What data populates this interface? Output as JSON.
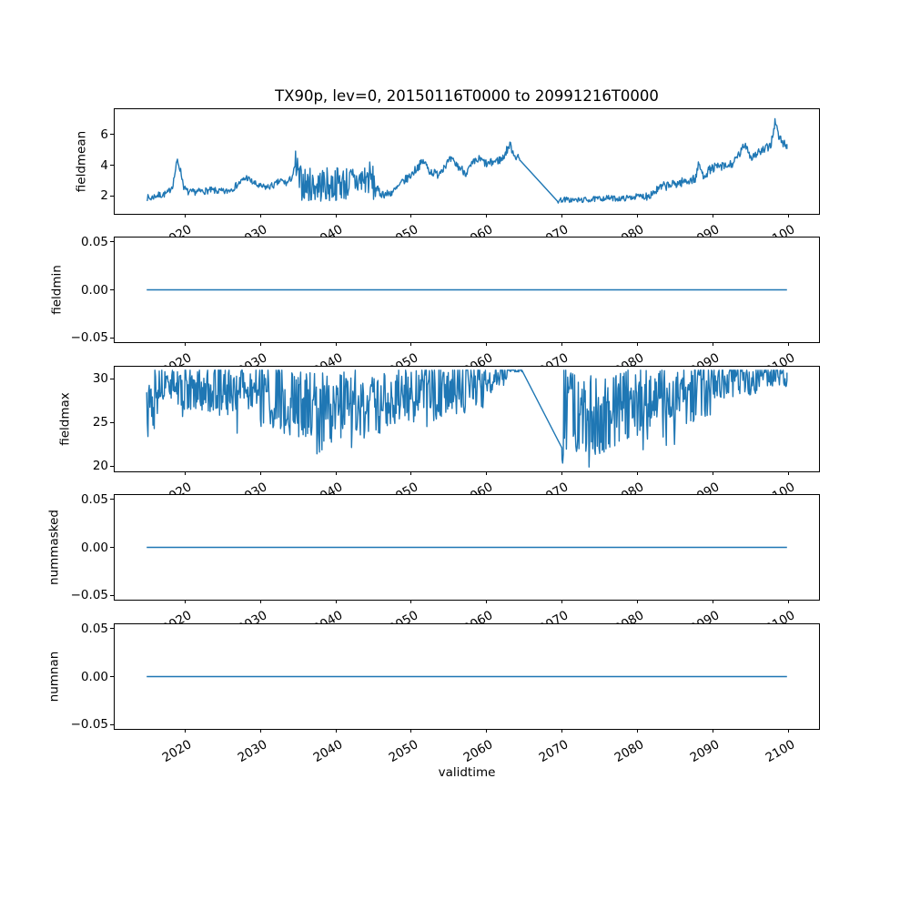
{
  "figure": {
    "title": "TX90p, lev=0, 20150116T0000 to 20991216T0000",
    "background_color": "#ffffff",
    "text_color": "#000000"
  },
  "chart_data": {
    "type": "line",
    "title": "TX90p, lev=0, 20150116T0000 to 20991216T0000",
    "xlabel": "validtime",
    "line_color": "#1f77b4",
    "grid": false,
    "legend": "none",
    "x": {
      "start": 2015.04,
      "end": 2099.96,
      "lim": [
        2010.79,
        2104.21
      ],
      "ticks": [
        2020,
        2030,
        2040,
        2050,
        2060,
        2070,
        2080,
        2090,
        2100
      ],
      "tick_labels": [
        "2020",
        "2030",
        "2040",
        "2050",
        "2060",
        "2070",
        "2080",
        "2090",
        "2100"
      ]
    },
    "subplots": [
      {
        "name": "fieldmean",
        "ylabel": "fieldmean",
        "ylim": [
          0.81,
          7.67
        ],
        "yticks": [
          {
            "v": 6,
            "label": "6"
          },
          {
            "v": 4,
            "label": "4"
          },
          {
            "v": 2,
            "label": "2"
          }
        ],
        "series": {
          "kind": "noisy",
          "seed": 7,
          "samples_per_year": 12,
          "clamp": [
            1.15,
            7.5
          ],
          "gap": {
            "from": 2064.6,
            "to": 2069.5
          },
          "trend": [
            [
              2015.04,
              1.9
            ],
            [
              2015.5,
              1.8
            ],
            [
              2016.2,
              2.0
            ],
            [
              2017,
              2.05
            ],
            [
              2017.8,
              2.15
            ],
            [
              2018.5,
              2.7
            ],
            [
              2019.1,
              4.35
            ],
            [
              2019.5,
              3.7
            ],
            [
              2020,
              2.5
            ],
            [
              2020.6,
              2.2
            ],
            [
              2021.5,
              2.25
            ],
            [
              2022.5,
              2.3
            ],
            [
              2023.5,
              2.35
            ],
            [
              2024.5,
              2.3
            ],
            [
              2025.5,
              2.25
            ],
            [
              2026.5,
              2.5
            ],
            [
              2027.5,
              2.9
            ],
            [
              2028.3,
              3.2
            ],
            [
              2029,
              2.9
            ],
            [
              2030,
              2.6
            ],
            [
              2031,
              2.55
            ],
            [
              2032,
              2.7
            ],
            [
              2032.8,
              3.0
            ],
            [
              2033.6,
              2.8
            ],
            [
              2034.3,
              3.2
            ],
            [
              2034.8,
              4.0
            ],
            [
              2035.3,
              2.9
            ],
            [
              2036.5,
              2.7
            ],
            [
              2037.5,
              2.65
            ],
            [
              2038.5,
              2.75
            ],
            [
              2039.5,
              2.65
            ],
            [
              2040.5,
              2.85
            ],
            [
              2041.5,
              2.8
            ],
            [
              2042.5,
              2.9
            ],
            [
              2043.5,
              3.0
            ],
            [
              2044.6,
              3.2
            ],
            [
              2045.2,
              2.7
            ],
            [
              2046,
              2.15
            ],
            [
              2047,
              2.1
            ],
            [
              2048,
              2.35
            ],
            [
              2049,
              2.9
            ],
            [
              2050,
              3.3
            ],
            [
              2051,
              3.9
            ],
            [
              2051.8,
              4.25
            ],
            [
              2052.6,
              3.6
            ],
            [
              2053.6,
              3.4
            ],
            [
              2054.6,
              4.0
            ],
            [
              2055.4,
              4.35
            ],
            [
              2056.4,
              3.9
            ],
            [
              2057.4,
              3.5
            ],
            [
              2058.4,
              4.15
            ],
            [
              2059.2,
              4.4
            ],
            [
              2060.2,
              4.05
            ],
            [
              2061.2,
              4.25
            ],
            [
              2062.2,
              4.4
            ],
            [
              2063.2,
              5.35
            ],
            [
              2063.8,
              4.7
            ],
            [
              2064.6,
              4.3
            ],
            [
              2069.5,
              1.65
            ],
            [
              2070.2,
              1.75
            ],
            [
              2072,
              1.7
            ],
            [
              2074,
              1.75
            ],
            [
              2076,
              1.85
            ],
            [
              2078,
              1.8
            ],
            [
              2080,
              1.95
            ],
            [
              2081.5,
              2.0
            ],
            [
              2082.5,
              2.3
            ],
            [
              2083.5,
              2.6
            ],
            [
              2085,
              2.75
            ],
            [
              2086.5,
              2.95
            ],
            [
              2087.8,
              3.1
            ],
            [
              2088.3,
              4.1
            ],
            [
              2088.8,
              3.3
            ],
            [
              2090,
              3.8
            ],
            [
              2091,
              3.9
            ],
            [
              2092,
              3.9
            ],
            [
              2093,
              4.2
            ],
            [
              2094.5,
              5.4
            ],
            [
              2095.2,
              4.5
            ],
            [
              2096,
              4.8
            ],
            [
              2097,
              5.0
            ],
            [
              2097.8,
              5.3
            ],
            [
              2098.4,
              6.9
            ],
            [
              2098.9,
              5.8
            ],
            [
              2099.4,
              5.5
            ],
            [
              2099.96,
              5.2
            ]
          ],
          "noise": [
            {
              "from": 2015.04,
              "to": 2034.7,
              "amp": 0.22,
              "spike_prob": 0,
              "spike_depth": 0
            },
            {
              "from": 2034.7,
              "to": 2045.4,
              "amp": 1.15,
              "spike_prob": 0,
              "spike_depth": 0
            },
            {
              "from": 2045.4,
              "to": 2064.6,
              "amp": 0.28,
              "spike_prob": 0,
              "spike_depth": 0
            },
            {
              "from": 2069.5,
              "to": 2081,
              "amp": 0.18,
              "spike_prob": 0,
              "spike_depth": 0
            },
            {
              "from": 2081,
              "to": 2100,
              "amp": 0.3,
              "spike_prob": 0,
              "spike_depth": 0
            }
          ]
        }
      },
      {
        "name": "fieldmin",
        "ylabel": "fieldmin",
        "ylim": [
          -0.0545,
          0.0545
        ],
        "yticks": [
          {
            "v": 0.05,
            "label": "0.05"
          },
          {
            "v": 0,
            "label": "0.00"
          },
          {
            "v": -0.05,
            "label": "−0.05"
          }
        ],
        "series": {
          "kind": "constant",
          "value": 0
        }
      },
      {
        "name": "fieldmax",
        "ylabel": "fieldmax",
        "ylim": [
          19.4,
          31.4
        ],
        "yticks": [
          {
            "v": 30,
            "label": "30"
          },
          {
            "v": 25,
            "label": "25"
          },
          {
            "v": 20,
            "label": "20"
          }
        ],
        "series": {
          "kind": "noisy",
          "seed": 13,
          "samples_per_year": 12,
          "clamp": [
            19.9,
            31
          ],
          "gap": {
            "from": 2064.8,
            "to": 2070.1
          },
          "trend": [
            [
              2015.04,
              28.0
            ],
            [
              2016,
              28.5
            ],
            [
              2017,
              29.5
            ],
            [
              2018,
              29.5
            ],
            [
              2019,
              29.0
            ],
            [
              2020,
              28.8
            ],
            [
              2021,
              28.5
            ],
            [
              2022,
              28.8
            ],
            [
              2023,
              29.0
            ],
            [
              2024,
              28.8
            ],
            [
              2025,
              29.0
            ],
            [
              2026,
              28.5
            ],
            [
              2027,
              29.0
            ],
            [
              2028,
              29.2
            ],
            [
              2029,
              28.8
            ],
            [
              2030,
              28.5
            ],
            [
              2031,
              28.2
            ],
            [
              2032,
              28.0
            ],
            [
              2033,
              27.8
            ],
            [
              2034,
              27.5
            ],
            [
              2035,
              27.2
            ],
            [
              2036,
              27.0
            ],
            [
              2037,
              27.0
            ],
            [
              2038,
              26.8
            ],
            [
              2039,
              26.5
            ],
            [
              2040,
              26.5
            ],
            [
              2041,
              26.8
            ],
            [
              2042,
              27.0
            ],
            [
              2043,
              27.2
            ],
            [
              2044,
              27.0
            ],
            [
              2045,
              27.3
            ],
            [
              2046,
              27.8
            ],
            [
              2047,
              27.5
            ],
            [
              2048,
              28.0
            ],
            [
              2049,
              28.2
            ],
            [
              2050,
              28.0
            ],
            [
              2051,
              28.4
            ],
            [
              2052,
              28.6
            ],
            [
              2053,
              28.3
            ],
            [
              2054,
              28.8
            ],
            [
              2055,
              29.0
            ],
            [
              2056,
              29.2
            ],
            [
              2057,
              29.0
            ],
            [
              2058,
              29.3
            ],
            [
              2059,
              29.5
            ],
            [
              2060,
              29.8
            ],
            [
              2061,
              30.2
            ],
            [
              2062,
              30.6
            ],
            [
              2063,
              31.0
            ],
            [
              2064.8,
              31.0
            ],
            [
              2070.1,
              22.1
            ],
            [
              2070.4,
              28.0
            ],
            [
              2071,
              27.0
            ],
            [
              2072,
              26.0
            ],
            [
              2073,
              25.8
            ],
            [
              2074,
              26.0
            ],
            [
              2075,
              25.5
            ],
            [
              2076,
              26.0
            ],
            [
              2077,
              26.5
            ],
            [
              2078,
              27.0
            ],
            [
              2079,
              27.5
            ],
            [
              2080,
              27.8
            ],
            [
              2081,
              27.5
            ],
            [
              2082,
              27.8
            ],
            [
              2083,
              28.0
            ],
            [
              2084,
              28.3
            ],
            [
              2085,
              28.2
            ],
            [
              2086,
              28.5
            ],
            [
              2087,
              28.8
            ],
            [
              2088,
              29.0
            ],
            [
              2089,
              29.3
            ],
            [
              2090,
              29.5
            ],
            [
              2091,
              29.8
            ],
            [
              2092,
              30.0
            ],
            [
              2093,
              30.0
            ],
            [
              2094,
              30.2
            ],
            [
              2095,
              30.3
            ],
            [
              2096,
              30.4
            ],
            [
              2097,
              30.5
            ],
            [
              2098,
              30.5
            ],
            [
              2099,
              30.4
            ],
            [
              2099.96,
              30.0
            ]
          ],
          "noise": [
            {
              "from": 2015.04,
              "to": 2016.5,
              "amp": 3.5,
              "spike_prob": 0.15,
              "spike_depth": 3.5
            },
            {
              "from": 2016.5,
              "to": 2020,
              "amp": 2.0,
              "spike_prob": 0.05,
              "spike_depth": 2
            },
            {
              "from": 2020,
              "to": 2030,
              "amp": 2.8,
              "spike_prob": 0.08,
              "spike_depth": 3
            },
            {
              "from": 2030,
              "to": 2046,
              "amp": 4.0,
              "spike_prob": 0.12,
              "spike_depth": 4
            },
            {
              "from": 2046,
              "to": 2060,
              "amp": 3.2,
              "spike_prob": 0.08,
              "spike_depth": 3.5
            },
            {
              "from": 2060,
              "to": 2063,
              "amp": 1.5,
              "spike_prob": 0.05,
              "spike_depth": 2
            },
            {
              "from": 2063,
              "to": 2064.8,
              "amp": 0.3,
              "spike_prob": 0,
              "spike_depth": 0
            },
            {
              "from": 2070.1,
              "to": 2079,
              "amp": 4.5,
              "spike_prob": 0.15,
              "spike_depth": 4.5
            },
            {
              "from": 2079,
              "to": 2090,
              "amp": 3.6,
              "spike_prob": 0.1,
              "spike_depth": 3.5
            },
            {
              "from": 2090,
              "to": 2096,
              "amp": 2.2,
              "spike_prob": 0.05,
              "spike_depth": 2
            },
            {
              "from": 2096,
              "to": 2100,
              "amp": 1.3,
              "spike_prob": 0.02,
              "spike_depth": 1.5
            }
          ]
        }
      },
      {
        "name": "nummasked",
        "ylabel": "nummasked",
        "ylim": [
          -0.0545,
          0.0545
        ],
        "yticks": [
          {
            "v": 0.05,
            "label": "0.05"
          },
          {
            "v": 0,
            "label": "0.00"
          },
          {
            "v": -0.05,
            "label": "−0.05"
          }
        ],
        "series": {
          "kind": "constant",
          "value": 0
        }
      },
      {
        "name": "numnan",
        "ylabel": "numnan",
        "ylim": [
          -0.0545,
          0.0545
        ],
        "yticks": [
          {
            "v": 0.05,
            "label": "0.05"
          },
          {
            "v": 0,
            "label": "0.00"
          },
          {
            "v": -0.05,
            "label": "−0.05"
          }
        ],
        "series": {
          "kind": "constant",
          "value": 0
        }
      }
    ]
  }
}
